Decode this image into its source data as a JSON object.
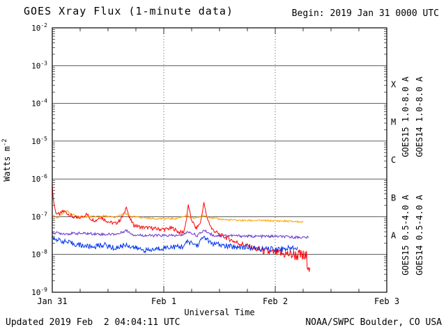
{
  "header": {
    "title": "GOES Xray Flux (1-minute data)",
    "begin": "Begin: 2019 Jan 31 0000 UTC"
  },
  "footer": {
    "updated": "Updated 2019 Feb  2 04:04:11 UTC",
    "source": "NOAA/SWPC Boulder, CO USA"
  },
  "chart_data": {
    "type": "line",
    "title": "GOES Xray Flux (1-minute data)",
    "xlabel": "Universal Time",
    "ylabel": "Watts m^-2",
    "ylabel_parts": {
      "base": "Watts m",
      "exp": "-2"
    },
    "x_unit": "days since 2019 Jan 31 0000 UTC",
    "xlim_days": [
      0,
      3
    ],
    "ylim_log": [
      -9,
      -2
    ],
    "yticks": [
      -2,
      -3,
      -4,
      -5,
      -6,
      -7,
      -8,
      -9
    ],
    "xticks": [
      {
        "t": 0,
        "label": "Jan 31"
      },
      {
        "t": 1,
        "label": "Feb 1"
      },
      {
        "t": 2,
        "label": "Feb 2"
      },
      {
        "t": 3,
        "label": "Feb 3"
      }
    ],
    "grid": {
      "h_decades": true,
      "v_dashed_days": [
        1,
        2
      ]
    },
    "class_bands": [
      {
        "label": "X",
        "log_mid": -3.5
      },
      {
        "label": "M",
        "log_mid": -4.5
      },
      {
        "label": "C",
        "log_mid": -5.5
      },
      {
        "label": "B",
        "log_mid": -6.5
      },
      {
        "label": "A",
        "log_mid": -7.5
      }
    ],
    "series": [
      {
        "id": "goes15-long",
        "label": "GOES15 1.0-8.0 A",
        "color": "#ff0000",
        "points": [
          [
            0.0,
            -6.15,
            0.03
          ],
          [
            0.01,
            -6.55,
            0.04
          ],
          [
            0.03,
            -6.88,
            0.05
          ],
          [
            0.06,
            -6.95,
            0.05
          ],
          [
            0.1,
            -6.85,
            0.05
          ],
          [
            0.14,
            -6.92,
            0.05
          ],
          [
            0.18,
            -7.0,
            0.05
          ],
          [
            0.23,
            -7.05,
            0.05
          ],
          [
            0.28,
            -6.98,
            0.05
          ],
          [
            0.31,
            -6.93,
            0.05
          ],
          [
            0.34,
            -7.05,
            0.05
          ],
          [
            0.39,
            -7.1,
            0.05
          ],
          [
            0.43,
            -7.0,
            0.05
          ],
          [
            0.47,
            -7.08,
            0.05
          ],
          [
            0.52,
            -7.15,
            0.05
          ],
          [
            0.57,
            -7.18,
            0.05
          ],
          [
            0.61,
            -7.08,
            0.05
          ],
          [
            0.645,
            -6.92,
            0.04
          ],
          [
            0.665,
            -6.72,
            0.03
          ],
          [
            0.69,
            -7.02,
            0.04
          ],
          [
            0.73,
            -7.22,
            0.05
          ],
          [
            0.8,
            -7.28,
            0.05
          ],
          [
            0.88,
            -7.3,
            0.05
          ],
          [
            0.95,
            -7.33,
            0.05
          ],
          [
            1.02,
            -7.33,
            0.05
          ],
          [
            1.08,
            -7.3,
            0.05
          ],
          [
            1.14,
            -7.42,
            0.05
          ],
          [
            1.18,
            -7.4,
            0.05
          ],
          [
            1.205,
            -7.05,
            0.03
          ],
          [
            1.22,
            -6.68,
            0.02
          ],
          [
            1.245,
            -7.05,
            0.04
          ],
          [
            1.29,
            -7.32,
            0.05
          ],
          [
            1.33,
            -7.15,
            0.04
          ],
          [
            1.36,
            -6.63,
            0.02
          ],
          [
            1.385,
            -7.0,
            0.04
          ],
          [
            1.43,
            -7.32,
            0.05
          ],
          [
            1.5,
            -7.48,
            0.06
          ],
          [
            1.58,
            -7.58,
            0.06
          ],
          [
            1.65,
            -7.68,
            0.07
          ],
          [
            1.73,
            -7.75,
            0.07
          ],
          [
            1.8,
            -7.83,
            0.08
          ],
          [
            1.88,
            -7.9,
            0.09
          ],
          [
            1.96,
            -7.95,
            0.11
          ],
          [
            2.05,
            -7.98,
            0.13
          ],
          [
            2.14,
            -8.0,
            0.15
          ],
          [
            2.22,
            -8.03,
            0.18
          ],
          [
            2.28,
            -8.1,
            0.22
          ],
          [
            2.31,
            -8.35,
            0.2
          ]
        ]
      },
      {
        "id": "goes14-long",
        "label": "GOES14 1.0-8.0 A",
        "color": "#ffa000",
        "points": [
          [
            0.0,
            -6.98,
            0.025
          ],
          [
            0.05,
            -7.02,
            0.025
          ],
          [
            0.1,
            -6.9,
            0.025
          ],
          [
            0.13,
            -6.84,
            0.025
          ],
          [
            0.18,
            -6.95,
            0.025
          ],
          [
            0.26,
            -7.0,
            0.025
          ],
          [
            0.36,
            -7.0,
            0.025
          ],
          [
            0.46,
            -6.98,
            0.025
          ],
          [
            0.56,
            -7.02,
            0.025
          ],
          [
            0.65,
            -6.92,
            0.025
          ],
          [
            0.71,
            -7.0,
            0.025
          ],
          [
            0.81,
            -7.02,
            0.025
          ],
          [
            0.91,
            -7.05,
            0.025
          ],
          [
            1.01,
            -7.05,
            0.025
          ],
          [
            1.11,
            -7.05,
            0.025
          ],
          [
            1.2,
            -6.97,
            0.025
          ],
          [
            1.26,
            -7.05,
            0.025
          ],
          [
            1.36,
            -6.97,
            0.025
          ],
          [
            1.46,
            -7.05,
            0.025
          ],
          [
            1.56,
            -7.08,
            0.025
          ],
          [
            1.7,
            -7.1,
            0.025
          ],
          [
            1.85,
            -7.1,
            0.025
          ],
          [
            2.0,
            -7.11,
            0.025
          ],
          [
            2.12,
            -7.12,
            0.025
          ],
          [
            2.25,
            -7.14,
            0.025
          ]
        ]
      },
      {
        "id": "goes15-short",
        "label": "GOES15 0.5-4.0 A",
        "color": "#6633cc",
        "points": [
          [
            0.0,
            -7.42,
            0.035
          ],
          [
            0.12,
            -7.45,
            0.035
          ],
          [
            0.24,
            -7.44,
            0.035
          ],
          [
            0.36,
            -7.45,
            0.035
          ],
          [
            0.48,
            -7.47,
            0.035
          ],
          [
            0.6,
            -7.45,
            0.035
          ],
          [
            0.66,
            -7.36,
            0.03
          ],
          [
            0.73,
            -7.48,
            0.035
          ],
          [
            0.86,
            -7.5,
            0.035
          ],
          [
            1.0,
            -7.5,
            0.035
          ],
          [
            1.15,
            -7.5,
            0.035
          ],
          [
            1.22,
            -7.4,
            0.03
          ],
          [
            1.3,
            -7.5,
            0.035
          ],
          [
            1.36,
            -7.36,
            0.03
          ],
          [
            1.45,
            -7.5,
            0.035
          ],
          [
            1.6,
            -7.5,
            0.035
          ],
          [
            1.8,
            -7.52,
            0.035
          ],
          [
            2.0,
            -7.52,
            0.035
          ],
          [
            2.15,
            -7.54,
            0.035
          ],
          [
            2.3,
            -7.55,
            0.035
          ]
        ]
      },
      {
        "id": "goes14-short",
        "label": "GOES14 0.5-4.0 A",
        "color": "#0033ee",
        "points": [
          [
            0.0,
            -7.56,
            0.05
          ],
          [
            0.06,
            -7.62,
            0.06
          ],
          [
            0.16,
            -7.7,
            0.07
          ],
          [
            0.26,
            -7.76,
            0.07
          ],
          [
            0.36,
            -7.8,
            0.07
          ],
          [
            0.46,
            -7.74,
            0.07
          ],
          [
            0.56,
            -7.84,
            0.07
          ],
          [
            0.66,
            -7.74,
            0.07
          ],
          [
            0.76,
            -7.84,
            0.07
          ],
          [
            0.86,
            -7.9,
            0.07
          ],
          [
            0.96,
            -7.84,
            0.07
          ],
          [
            1.06,
            -7.8,
            0.07
          ],
          [
            1.16,
            -7.8,
            0.07
          ],
          [
            1.22,
            -7.66,
            0.06
          ],
          [
            1.3,
            -7.76,
            0.07
          ],
          [
            1.36,
            -7.52,
            0.05
          ],
          [
            1.42,
            -7.7,
            0.07
          ],
          [
            1.52,
            -7.76,
            0.07
          ],
          [
            1.62,
            -7.8,
            0.07
          ],
          [
            1.72,
            -7.8,
            0.07
          ],
          [
            1.82,
            -7.85,
            0.07
          ],
          [
            1.95,
            -7.86,
            0.07
          ],
          [
            2.08,
            -7.85,
            0.07
          ],
          [
            2.2,
            -7.8,
            0.07
          ]
        ]
      }
    ]
  }
}
